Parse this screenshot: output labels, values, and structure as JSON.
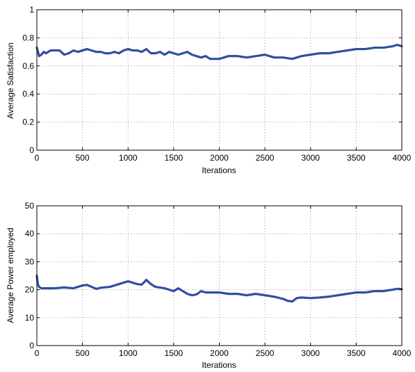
{
  "colors": {
    "line": "#2f4fa0",
    "axis": "#000000",
    "grid": "#9a9a9a"
  },
  "chart_data": [
    {
      "type": "line",
      "title": "",
      "xlabel": "Iterations",
      "ylabel": "Average Satisfaction",
      "xlim": [
        0,
        4000
      ],
      "ylim": [
        0,
        1
      ],
      "xticks": [
        0,
        500,
        1000,
        1500,
        2000,
        2500,
        3000,
        3500,
        4000
      ],
      "yticks": [
        0,
        0.2,
        0.4,
        0.6,
        0.8,
        1
      ],
      "ytick_labels": [
        "0",
        "0.2",
        "0.4",
        "0.6",
        "0.8",
        "1"
      ],
      "grid": "dotted",
      "x": [
        0,
        25,
        50,
        75,
        100,
        150,
        200,
        250,
        300,
        350,
        400,
        450,
        500,
        550,
        600,
        650,
        700,
        750,
        800,
        850,
        900,
        950,
        1000,
        1050,
        1100,
        1150,
        1200,
        1250,
        1300,
        1350,
        1400,
        1450,
        1500,
        1550,
        1600,
        1650,
        1700,
        1750,
        1800,
        1850,
        1900,
        1950,
        2000,
        2100,
        2200,
        2300,
        2400,
        2500,
        2600,
        2700,
        2800,
        2900,
        3000,
        3100,
        3200,
        3300,
        3400,
        3500,
        3600,
        3700,
        3800,
        3900,
        3950,
        4000
      ],
      "y": [
        0.73,
        0.67,
        0.68,
        0.7,
        0.69,
        0.71,
        0.71,
        0.71,
        0.68,
        0.69,
        0.71,
        0.7,
        0.71,
        0.72,
        0.71,
        0.7,
        0.7,
        0.69,
        0.69,
        0.7,
        0.69,
        0.71,
        0.72,
        0.71,
        0.71,
        0.7,
        0.72,
        0.69,
        0.69,
        0.7,
        0.68,
        0.7,
        0.69,
        0.68,
        0.69,
        0.7,
        0.68,
        0.67,
        0.66,
        0.67,
        0.65,
        0.65,
        0.65,
        0.67,
        0.67,
        0.66,
        0.67,
        0.68,
        0.66,
        0.66,
        0.65,
        0.67,
        0.68,
        0.69,
        0.69,
        0.7,
        0.71,
        0.72,
        0.72,
        0.73,
        0.73,
        0.74,
        0.75,
        0.74
      ]
    },
    {
      "type": "line",
      "title": "",
      "xlabel": "Iterations",
      "ylabel": "Average Power employed",
      "xlim": [
        0,
        4000
      ],
      "ylim": [
        0,
        50
      ],
      "xticks": [
        0,
        500,
        1000,
        1500,
        2000,
        2500,
        3000,
        3500,
        4000
      ],
      "yticks": [
        0,
        10,
        20,
        30,
        40,
        50
      ],
      "ytick_labels": [
        "0",
        "10",
        "20",
        "30",
        "40",
        "50"
      ],
      "grid": "dotted",
      "x": [
        0,
        10,
        25,
        50,
        100,
        200,
        300,
        400,
        500,
        550,
        600,
        650,
        700,
        800,
        900,
        950,
        1000,
        1050,
        1100,
        1150,
        1200,
        1250,
        1300,
        1400,
        1450,
        1500,
        1550,
        1600,
        1650,
        1700,
        1750,
        1800,
        1850,
        1900,
        2000,
        2100,
        2200,
        2300,
        2400,
        2500,
        2600,
        2700,
        2750,
        2800,
        2850,
        2900,
        3000,
        3100,
        3200,
        3300,
        3400,
        3500,
        3600,
        3700,
        3800,
        3900,
        3950,
        4000
      ],
      "y": [
        25,
        22,
        21,
        20.5,
        20.5,
        20.5,
        20.8,
        20.5,
        21.5,
        21.7,
        21,
        20.3,
        20.7,
        21,
        22,
        22.5,
        23,
        22.5,
        22,
        21.8,
        23.5,
        22,
        21,
        20.5,
        20,
        19.5,
        20.5,
        19.5,
        18.5,
        18,
        18.3,
        19.5,
        19,
        19,
        19,
        18.5,
        18.5,
        18,
        18.5,
        18,
        17.5,
        16.7,
        16,
        15.8,
        17,
        17.2,
        17,
        17.2,
        17.5,
        18,
        18.5,
        19,
        19,
        19.5,
        19.5,
        20,
        20.3,
        20.2
      ]
    }
  ]
}
